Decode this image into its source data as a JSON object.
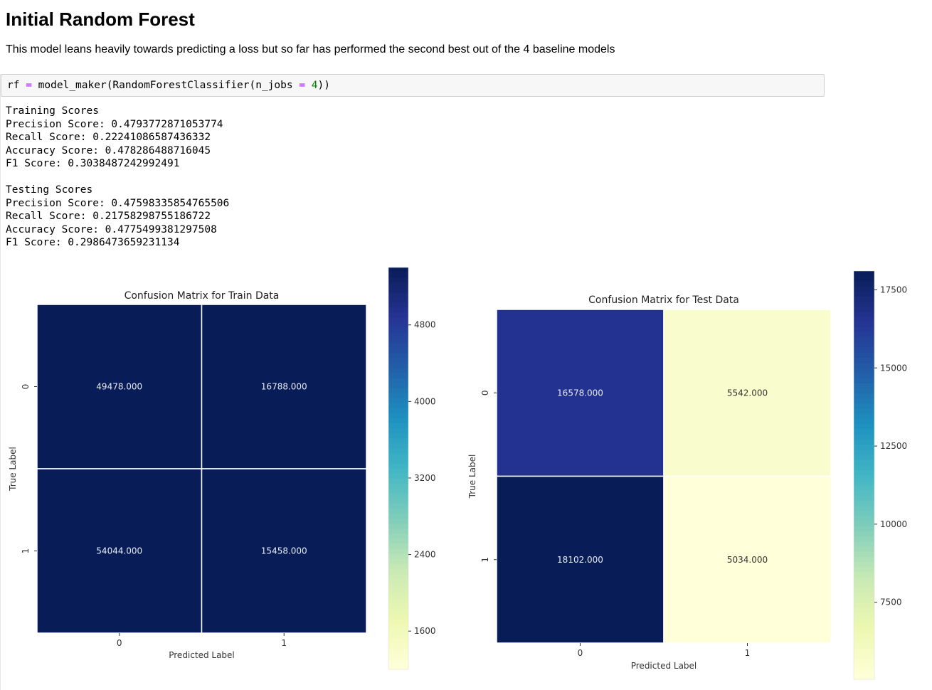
{
  "heading": "Initial Random Forest",
  "description": "This model leans heavily towards predicting a loss but so far has performed the second best out of the 4 baseline models",
  "code": {
    "var": "rf",
    "op": "=",
    "call_prefix": "model_maker(RandomForestClassifier(n_jobs",
    "number": "4",
    "call_suffix": "))"
  },
  "output": {
    "training": [
      "Training Scores",
      "Precision Score: 0.4793772871053774",
      "Recall Score: 0.22241086587436332",
      "Accuracy Score: 0.478286488716045",
      "F1 Score: 0.3038487242992491"
    ],
    "testing": [
      "Testing Scores",
      "Precision Score: 0.47598335854765506",
      "Recall Score: 0.21758298755186722",
      "Accuracy Score: 0.4775499381297508",
      "F1 Score: 0.2986473659231134"
    ]
  },
  "chart_data": [
    {
      "type": "heatmap",
      "title": "Confusion Matrix for Train Data",
      "xlabel": "Predicted Label",
      "ylabel": "True Label",
      "x_categories": [
        "0",
        "1"
      ],
      "y_categories": [
        "0",
        "1"
      ],
      "values": [
        [
          49478,
          16788
        ],
        [
          54044,
          15458
        ]
      ],
      "annotations": [
        [
          "49478.000",
          "16788.000"
        ],
        [
          "54044.000",
          "15458.000"
        ]
      ],
      "colormap": "YlGnBu",
      "colorbar_ticks": [
        4800,
        4000,
        3200,
        2400,
        1600
      ],
      "colorbar_range": [
        1200,
        5400
      ]
    },
    {
      "type": "heatmap",
      "title": "Confusion Matrix for Test Data",
      "xlabel": "Predicted Label",
      "ylabel": "True Label",
      "x_categories": [
        "0",
        "1"
      ],
      "y_categories": [
        "0",
        "1"
      ],
      "values": [
        [
          16578,
          5542
        ],
        [
          18102,
          5034
        ]
      ],
      "annotations": [
        [
          "16578.000",
          "5542.000"
        ],
        [
          "18102.000",
          "5034.000"
        ]
      ],
      "colormap": "YlGnBu",
      "colorbar_ticks": [
        17500,
        15000,
        12500,
        10000,
        7500
      ],
      "colorbar_range": [
        5034,
        18102
      ]
    }
  ]
}
